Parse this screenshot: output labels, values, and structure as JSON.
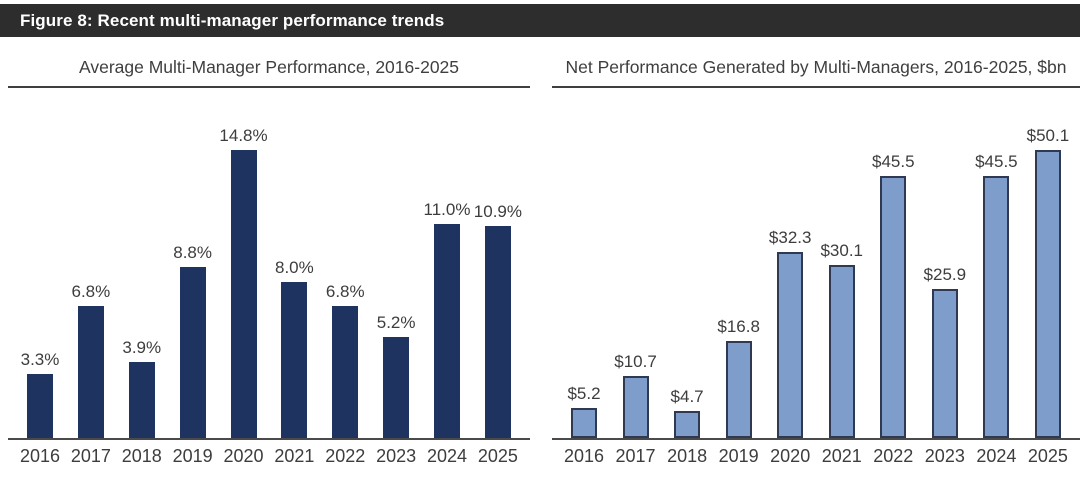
{
  "figure_header": {
    "title": "Figure 8: Recent multi-manager performance trends",
    "background_color": "#2d2d2d",
    "text_color": "#ffffff"
  },
  "chart_data": [
    {
      "type": "bar",
      "title": "Average Multi-Manager Performance, 2016-2025",
      "categories": [
        "2016",
        "2017",
        "2018",
        "2019",
        "2020",
        "2021",
        "2022",
        "2023",
        "2024",
        "2025"
      ],
      "values": [
        3.3,
        6.8,
        3.9,
        8.8,
        14.8,
        8.0,
        6.8,
        5.2,
        11.0,
        10.9
      ],
      "labels": [
        "3.3%",
        "6.8%",
        "3.9%",
        "8.8%",
        "14.8%",
        "8.0%",
        "6.8%",
        "5.2%",
        "11.0%",
        "10.9%"
      ],
      "xlabel": "",
      "ylabel": "",
      "ylim": [
        0,
        14.8
      ],
      "grid": false,
      "legend": false,
      "bar_color": "#1f3360",
      "bar_border": null
    },
    {
      "type": "bar",
      "title": "Net Performance Generated by Multi-Managers, 2016-2025, $bn",
      "categories": [
        "2016",
        "2017",
        "2018",
        "2019",
        "2020",
        "2021",
        "2022",
        "2023",
        "2024",
        "2025"
      ],
      "values": [
        5.2,
        10.7,
        4.7,
        16.8,
        32.3,
        30.1,
        45.5,
        25.9,
        45.5,
        50.1
      ],
      "labels": [
        "$5.2",
        "$10.7",
        "$4.7",
        "$16.8",
        "$32.3",
        "$30.1",
        "$45.5",
        "$25.9",
        "$45.5",
        "$50.1"
      ],
      "xlabel": "",
      "ylabel": "",
      "ylim": [
        0,
        50.1
      ],
      "grid": false,
      "legend": false,
      "bar_color": "#7e9dcb",
      "bar_border": "#2f3a52"
    }
  ]
}
